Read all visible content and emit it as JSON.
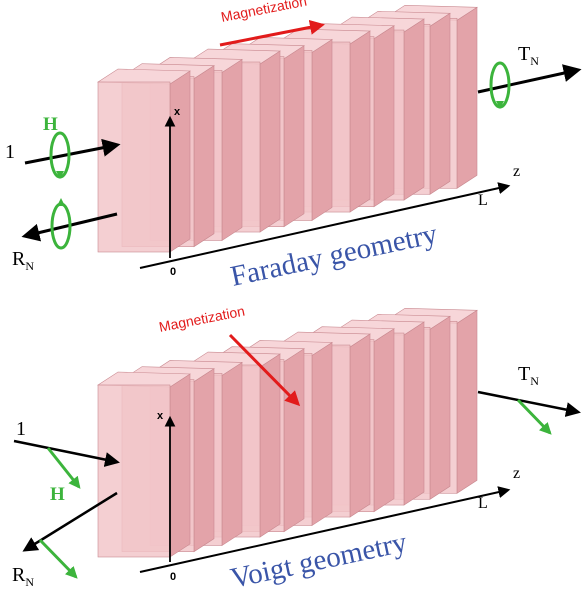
{
  "faraday": {
    "title": "Faraday geometry",
    "magnetization": "Magnetization",
    "incident": "1",
    "field": "H",
    "reflected_main": "R",
    "reflected_sub": "N",
    "transmitted_main": "T",
    "transmitted_sub": "N",
    "axis_x": "x",
    "axis_z": "z",
    "origin": "0",
    "length": "L"
  },
  "voigt": {
    "title": "Voigt geometry",
    "magnetization": "Magnetization",
    "incident": "1",
    "field": "H",
    "reflected_main": "R",
    "reflected_sub": "N",
    "transmitted_main": "T",
    "transmitted_sub": "N",
    "axis_x": "x",
    "axis_z": "z",
    "origin": "0",
    "length": "L"
  },
  "colors": {
    "slab_face": "#f2c4c8",
    "slab_side": "#e3a3a9",
    "slab_edge": "#c98990",
    "magnetization": "#e21b1b",
    "field": "#3cb43c",
    "title": "#3a55a8"
  }
}
